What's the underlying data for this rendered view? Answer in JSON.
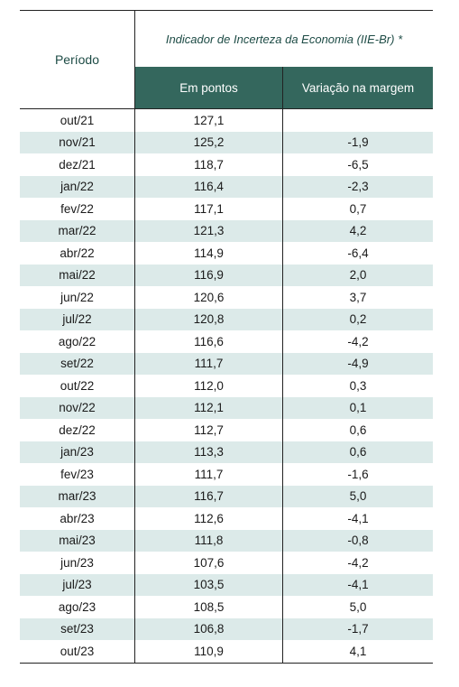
{
  "table": {
    "header": {
      "period_label": "Período",
      "title": "Indicador de Incerteza da Economia (IIE-Br) *",
      "col_points": "Em pontos",
      "col_change": "Variação na margem"
    },
    "rows": [
      {
        "period": "out/21",
        "points": "127,1",
        "change": ""
      },
      {
        "period": "nov/21",
        "points": "125,2",
        "change": "-1,9"
      },
      {
        "period": "dez/21",
        "points": "118,7",
        "change": "-6,5"
      },
      {
        "period": "jan/22",
        "points": "116,4",
        "change": "-2,3"
      },
      {
        "period": "fev/22",
        "points": "117,1",
        "change": "0,7"
      },
      {
        "period": "mar/22",
        "points": "121,3",
        "change": "4,2"
      },
      {
        "period": "abr/22",
        "points": "114,9",
        "change": "-6,4"
      },
      {
        "period": "mai/22",
        "points": "116,9",
        "change": "2,0"
      },
      {
        "period": "jun/22",
        "points": "120,6",
        "change": "3,7"
      },
      {
        "period": "jul/22",
        "points": "120,8",
        "change": "0,2"
      },
      {
        "period": "ago/22",
        "points": "116,6",
        "change": "-4,2"
      },
      {
        "period": "set/22",
        "points": "111,7",
        "change": "-4,9"
      },
      {
        "period": "out/22",
        "points": "112,0",
        "change": "0,3"
      },
      {
        "period": "nov/22",
        "points": "112,1",
        "change": "0,1"
      },
      {
        "period": "dez/22",
        "points": "112,7",
        "change": "0,6"
      },
      {
        "period": "jan/23",
        "points": "113,3",
        "change": "0,6"
      },
      {
        "period": "fev/23",
        "points": "111,7",
        "change": "-1,6"
      },
      {
        "period": "mar/23",
        "points": "116,7",
        "change": "5,0"
      },
      {
        "period": "abr/23",
        "points": "112,6",
        "change": "-4,1"
      },
      {
        "period": "mai/23",
        "points": "111,8",
        "change": "-0,8"
      },
      {
        "period": "jun/23",
        "points": "107,6",
        "change": "-4,2"
      },
      {
        "period": "jul/23",
        "points": "103,5",
        "change": "-4,1"
      },
      {
        "period": "ago/23",
        "points": "108,5",
        "change": "5,0"
      },
      {
        "period": "set/23",
        "points": "106,8",
        "change": "-1,7"
      },
      {
        "period": "out/23",
        "points": "110,9",
        "change": "4,1"
      }
    ]
  },
  "colors": {
    "header_bg": "#34675d",
    "header_text": "#1d4b45",
    "stripe": "#dceae9"
  }
}
